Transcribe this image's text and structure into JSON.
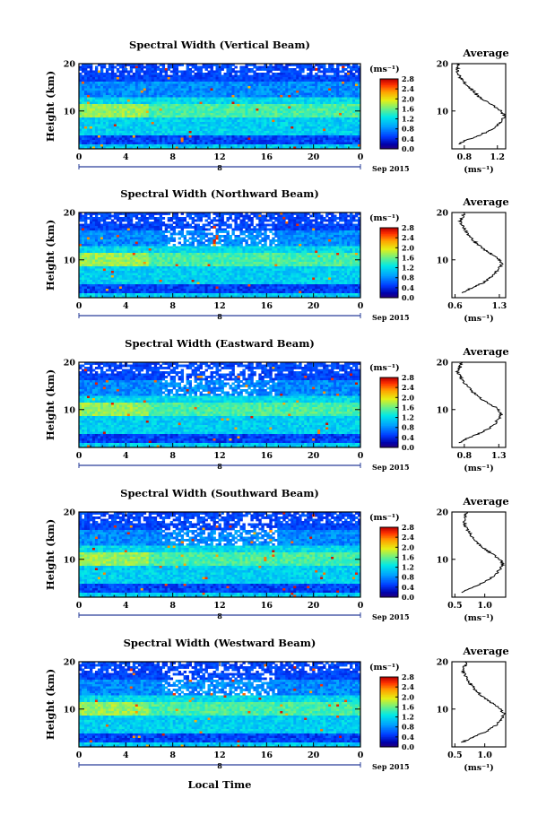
{
  "chart_data": [
    {
      "type": "heatmap",
      "title": "Spectral Width (Vertical Beam)",
      "xlabel": "",
      "ylabel": "Height (km)",
      "x_ticks": [
        "0",
        "4",
        "8",
        "12",
        "16",
        "20",
        "0"
      ],
      "xlim": [
        0,
        24
      ],
      "y_ticks": [
        "20",
        "10"
      ],
      "ylim": [
        2,
        20
      ],
      "date_row": {
        "day": "8",
        "month_year": "Sep 2015"
      },
      "colorbar": {
        "unit": "(ms⁻¹)",
        "ticks": [
          "2.8",
          "2.4",
          "2.0",
          "1.6",
          "1.2",
          "0.8",
          "0.4",
          "0.0"
        ],
        "range": [
          0.0,
          2.8
        ]
      },
      "profile": {
        "title": "Average",
        "x_ticks": [
          "0.8",
          "1.2"
        ],
        "xlim": [
          0.65,
          1.3
        ],
        "y_ticks": [
          "20",
          "10"
        ],
        "ylim": [
          2,
          20
        ],
        "xlabel": "(ms⁻¹)",
        "heights": [
          3,
          4,
          5,
          6,
          7,
          8,
          9,
          10,
          11,
          12,
          13,
          14,
          15,
          16,
          17,
          18,
          19,
          20
        ],
        "values": [
          0.72,
          0.85,
          1.0,
          1.12,
          1.2,
          1.26,
          1.29,
          1.24,
          1.16,
          1.06,
          0.98,
          0.92,
          0.86,
          0.8,
          0.75,
          0.72,
          0.72,
          0.74
        ]
      }
    },
    {
      "type": "heatmap",
      "title": "Spectral Width (Northward Beam)",
      "xlabel": "",
      "ylabel": "Height (km)",
      "x_ticks": [
        "0",
        "4",
        "8",
        "12",
        "16",
        "20",
        "0"
      ],
      "xlim": [
        0,
        24
      ],
      "y_ticks": [
        "20",
        "10"
      ],
      "ylim": [
        2,
        20
      ],
      "date_row": {
        "day": "8",
        "month_year": "Sep 2015"
      },
      "colorbar": {
        "unit": "(ms⁻¹)",
        "ticks": [
          "2.8",
          "2.4",
          "2.0",
          "1.6",
          "1.2",
          "0.8",
          "0.4",
          "0.0"
        ],
        "range": [
          0.0,
          2.8
        ]
      },
      "profile": {
        "title": "Average",
        "x_ticks": [
          "0.6",
          "1.3"
        ],
        "xlim": [
          0.55,
          1.4
        ],
        "y_ticks": [
          "20",
          "10"
        ],
        "ylim": [
          2,
          20
        ],
        "xlabel": "(ms⁻¹)",
        "heights": [
          3,
          4,
          5,
          6,
          7,
          8,
          9,
          10,
          11,
          12,
          13,
          14,
          15,
          16,
          17,
          18,
          19,
          20
        ],
        "values": [
          0.7,
          0.85,
          1.02,
          1.14,
          1.22,
          1.28,
          1.34,
          1.3,
          1.2,
          1.08,
          0.98,
          0.9,
          0.83,
          0.78,
          0.72,
          0.68,
          0.72,
          0.74
        ]
      }
    },
    {
      "type": "heatmap",
      "title": "Spectral Width (Eastward Beam)",
      "xlabel": "",
      "ylabel": "Height (km)",
      "x_ticks": [
        "0",
        "4",
        "8",
        "12",
        "16",
        "20",
        "0"
      ],
      "xlim": [
        0,
        24
      ],
      "y_ticks": [
        "20",
        "10"
      ],
      "ylim": [
        2,
        20
      ],
      "date_row": {
        "day": "8",
        "month_year": "Sep 2015"
      },
      "colorbar": {
        "unit": "(ms⁻¹)",
        "ticks": [
          "2.8",
          "2.4",
          "2.0",
          "1.6",
          "1.2",
          "0.8",
          "0.4",
          "0.0"
        ],
        "range": [
          0.0,
          2.8
        ]
      },
      "profile": {
        "title": "Average",
        "x_ticks": [
          "0.8",
          "1.3"
        ],
        "xlim": [
          0.62,
          1.4
        ],
        "y_ticks": [
          "20",
          "10"
        ],
        "ylim": [
          2,
          20
        ],
        "xlabel": "(ms⁻¹)",
        "heights": [
          3,
          4,
          5,
          6,
          7,
          8,
          9,
          10,
          11,
          12,
          13,
          14,
          15,
          16,
          17,
          18,
          19,
          20
        ],
        "values": [
          0.72,
          0.86,
          1.02,
          1.15,
          1.24,
          1.3,
          1.34,
          1.3,
          1.2,
          1.08,
          0.98,
          0.9,
          0.84,
          0.78,
          0.74,
          0.7,
          0.74,
          0.76
        ]
      }
    },
    {
      "type": "heatmap",
      "title": "Spectral Width (Southward Beam)",
      "xlabel": "",
      "ylabel": "Height (km)",
      "x_ticks": [
        "0",
        "4",
        "8",
        "12",
        "16",
        "20",
        "0"
      ],
      "xlim": [
        0,
        24
      ],
      "y_ticks": [
        "20",
        "10"
      ],
      "ylim": [
        2,
        20
      ],
      "date_row": {
        "day": "8",
        "month_year": "Sep 2015"
      },
      "colorbar": {
        "unit": "(ms⁻¹)",
        "ticks": [
          "2.8",
          "2.4",
          "2.0",
          "1.6",
          "1.2",
          "0.8",
          "0.4",
          "0.0"
        ],
        "range": [
          0.0,
          2.8
        ]
      },
      "profile": {
        "title": "Average",
        "x_ticks": [
          "0.5",
          "1.0"
        ],
        "xlim": [
          0.45,
          1.35
        ],
        "y_ticks": [
          "20",
          "10"
        ],
        "ylim": [
          2,
          20
        ],
        "xlabel": "(ms⁻¹)",
        "heights": [
          3,
          4,
          5,
          6,
          7,
          8,
          9,
          10,
          11,
          12,
          13,
          14,
          15,
          16,
          17,
          18,
          19,
          20
        ],
        "values": [
          0.62,
          0.78,
          0.96,
          1.1,
          1.2,
          1.26,
          1.3,
          1.25,
          1.14,
          1.02,
          0.92,
          0.84,
          0.78,
          0.72,
          0.68,
          0.65,
          0.67,
          0.7
        ]
      }
    },
    {
      "type": "heatmap",
      "title": "Spectral Width (Westward Beam)",
      "xlabel": "Local Time",
      "ylabel": "Height (km)",
      "x_ticks": [
        "0",
        "4",
        "8",
        "12",
        "16",
        "20",
        "0"
      ],
      "xlim": [
        0,
        24
      ],
      "y_ticks": [
        "20",
        "10"
      ],
      "ylim": [
        2,
        20
      ],
      "date_row": {
        "day": "8",
        "month_year": "Sep 2015"
      },
      "colorbar": {
        "unit": "(ms⁻¹)",
        "ticks": [
          "2.8",
          "2.4",
          "2.0",
          "1.6",
          "1.2",
          "0.8",
          "0.4",
          "0.0"
        ],
        "range": [
          0.0,
          2.8
        ]
      },
      "profile": {
        "title": "Average",
        "x_ticks": [
          "0.5",
          "1.0"
        ],
        "xlim": [
          0.45,
          1.35
        ],
        "y_ticks": [
          "20",
          "10"
        ],
        "ylim": [
          2,
          20
        ],
        "xlabel": "(ms⁻¹)",
        "heights": [
          3,
          4,
          5,
          6,
          7,
          8,
          9,
          10,
          11,
          12,
          13,
          14,
          15,
          16,
          17,
          18,
          19,
          20
        ],
        "values": [
          0.62,
          0.8,
          0.98,
          1.12,
          1.22,
          1.28,
          1.32,
          1.26,
          1.15,
          1.03,
          0.93,
          0.85,
          0.78,
          0.72,
          0.68,
          0.64,
          0.66,
          0.7
        ]
      }
    }
  ]
}
